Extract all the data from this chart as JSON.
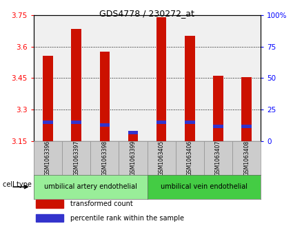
{
  "title": "GDS4778 / 230272_at",
  "samples": [
    "GSM1063396",
    "GSM1063397",
    "GSM1063398",
    "GSM1063399",
    "GSM1063405",
    "GSM1063406",
    "GSM1063407",
    "GSM1063408"
  ],
  "transformed_count": [
    3.555,
    3.685,
    3.575,
    3.195,
    3.74,
    3.65,
    3.46,
    3.455
  ],
  "percentile_rank": [
    15,
    15,
    13,
    7,
    15,
    15,
    12,
    12
  ],
  "y_min": 3.15,
  "y_max": 3.75,
  "y_ticks_left": [
    3.15,
    3.3,
    3.45,
    3.6,
    3.75
  ],
  "y_ticks_right": [
    0,
    25,
    50,
    75,
    100
  ],
  "bar_color": "#cc1100",
  "blue_color": "#3333cc",
  "plot_bg": "#f0f0f0",
  "cell_type_groups": [
    {
      "label": "umbilical artery endothelial",
      "start": 0,
      "end": 4,
      "color": "#99ee99"
    },
    {
      "label": "umbilical vein endothelial",
      "start": 4,
      "end": 8,
      "color": "#44cc44"
    }
  ],
  "legend_items": [
    {
      "color": "#cc1100",
      "label": "transformed count"
    },
    {
      "color": "#3333cc",
      "label": "percentile rank within the sample"
    }
  ],
  "bar_width": 0.35,
  "baseline": 3.15,
  "sample_box_color": "#cccccc",
  "label_fontsize": 5.5,
  "tick_fontsize": 7.5,
  "title_fontsize": 9,
  "cell_type_fontsize": 7,
  "legend_fontsize": 7
}
